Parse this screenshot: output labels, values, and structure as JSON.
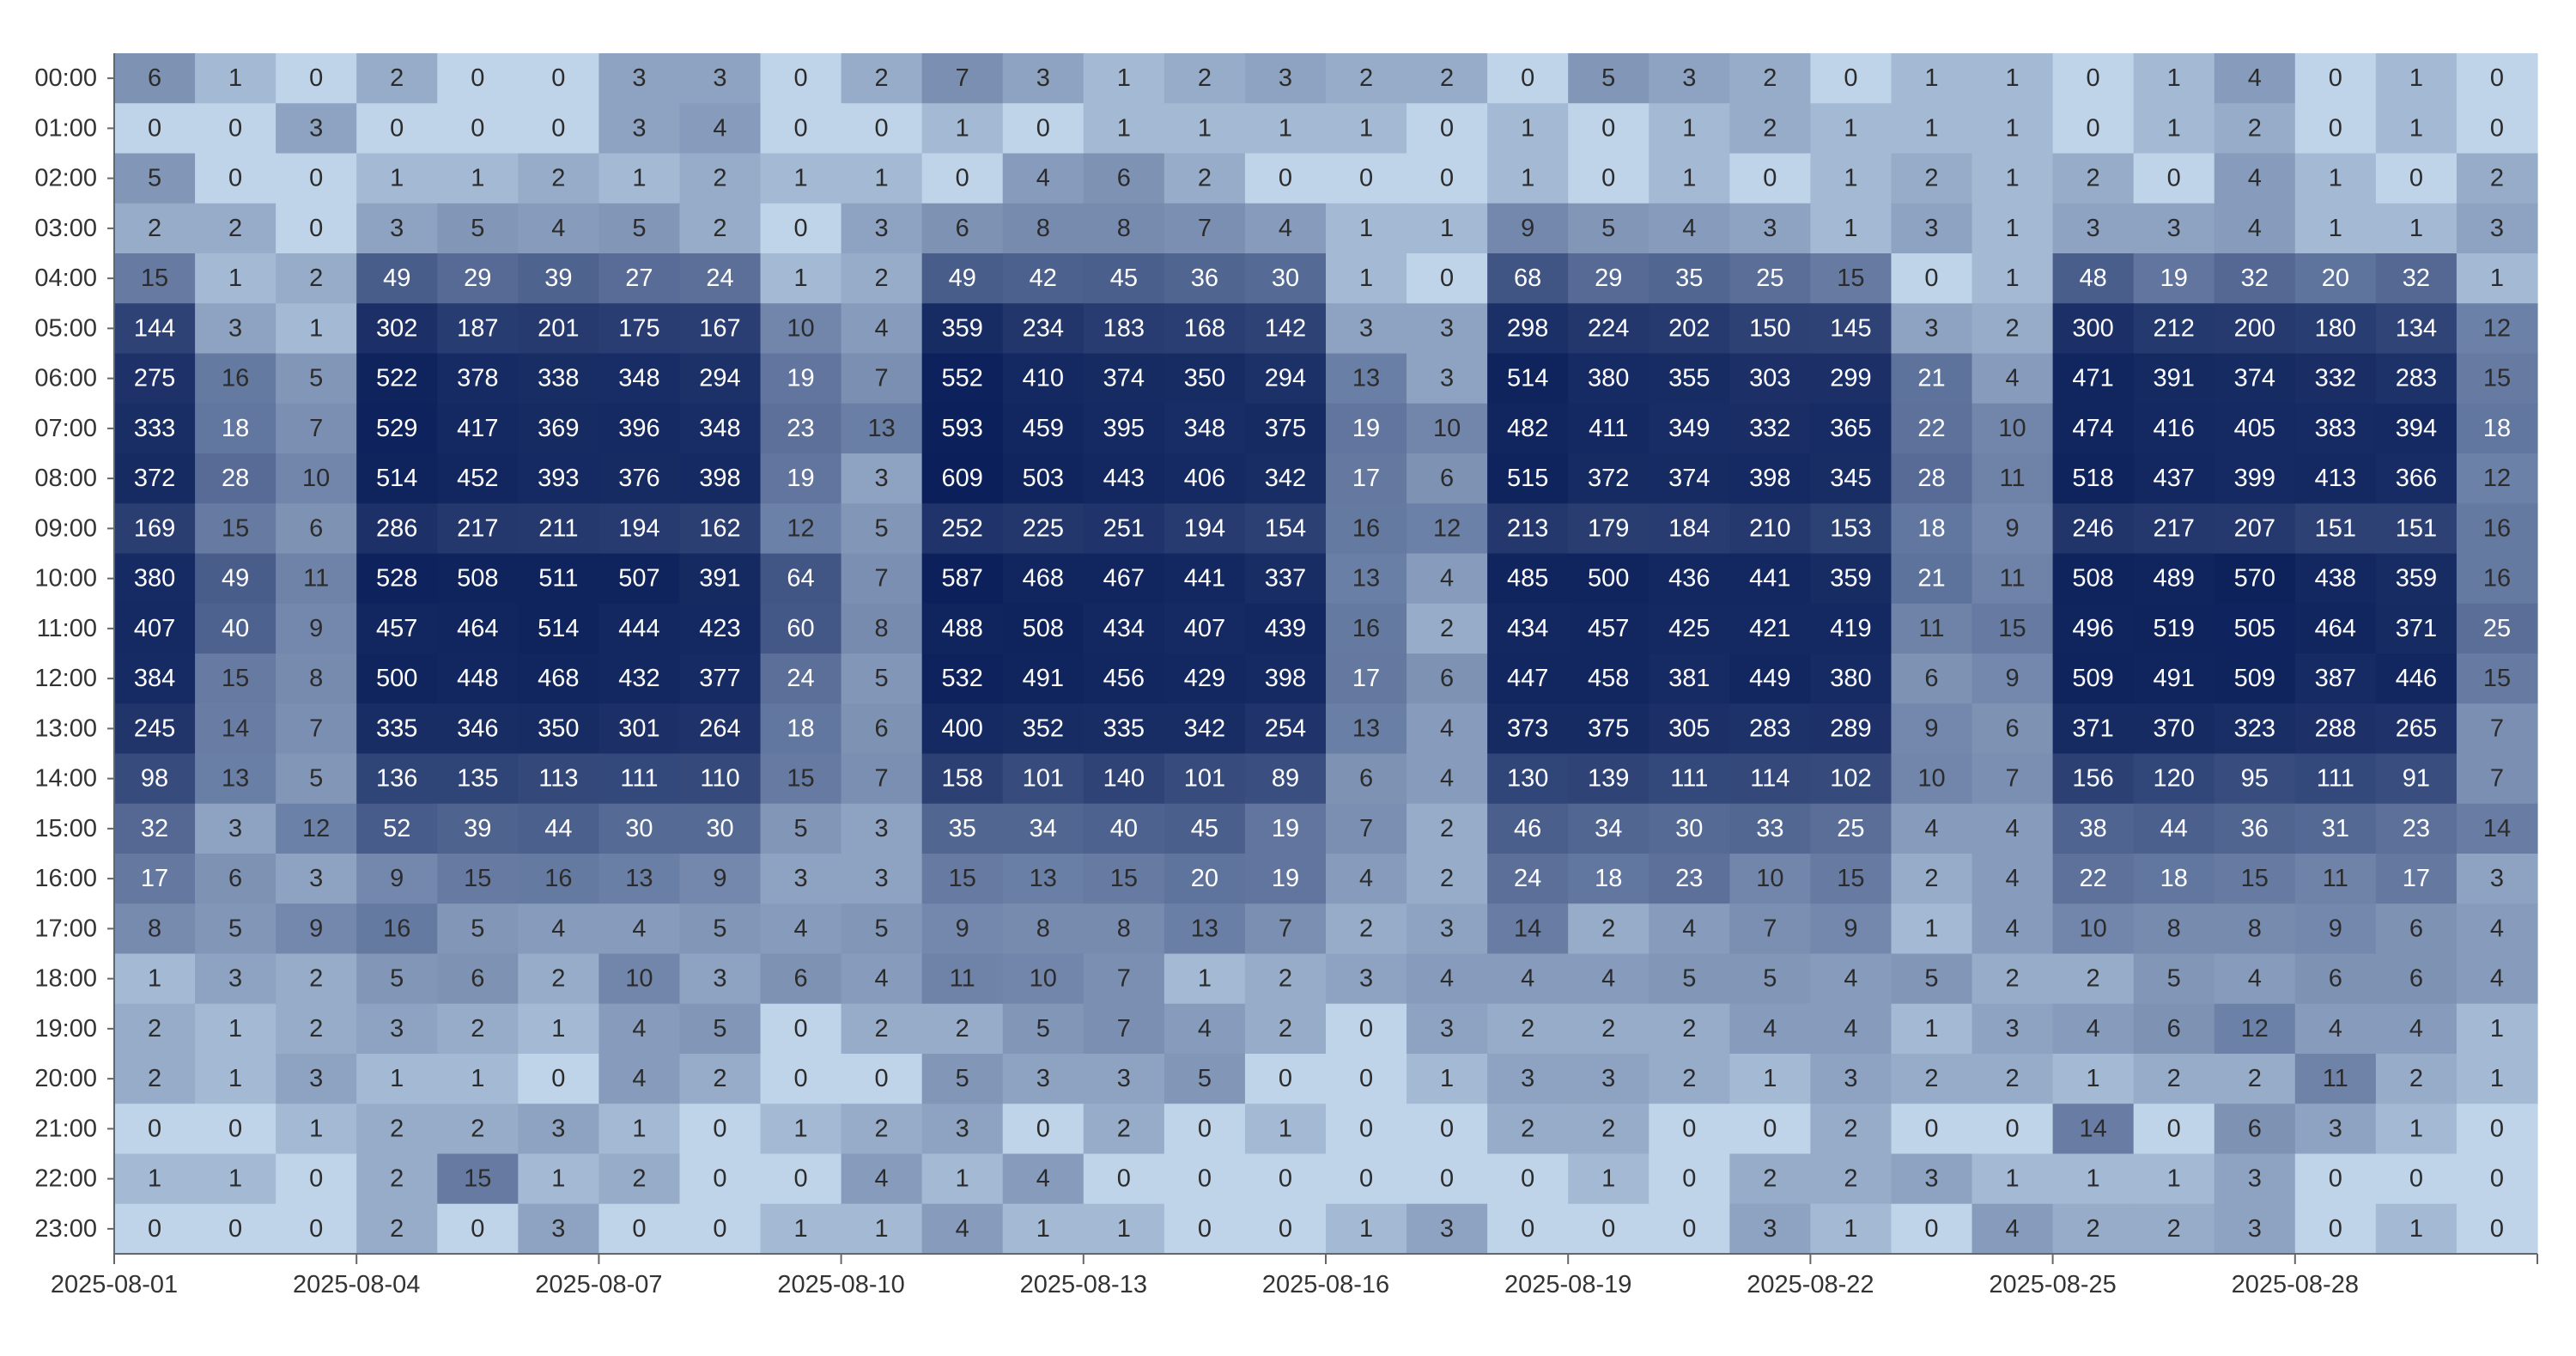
{
  "chart_data": {
    "type": "heatmap",
    "title": "",
    "xlabel": "",
    "ylabel": "",
    "x_tick_labels": [
      "2025-08-01",
      "2025-08-04",
      "2025-08-07",
      "2025-08-10",
      "2025-08-13",
      "2025-08-16",
      "2025-08-19",
      "2025-08-22",
      "2025-08-25",
      "2025-08-28"
    ],
    "x": [
      "2025-08-01",
      "2025-08-02",
      "2025-08-03",
      "2025-08-04",
      "2025-08-05",
      "2025-08-06",
      "2025-08-07",
      "2025-08-08",
      "2025-08-09",
      "2025-08-10",
      "2025-08-11",
      "2025-08-12",
      "2025-08-13",
      "2025-08-14",
      "2025-08-15",
      "2025-08-16",
      "2025-08-17",
      "2025-08-18",
      "2025-08-19",
      "2025-08-20",
      "2025-08-21",
      "2025-08-22",
      "2025-08-23",
      "2025-08-24",
      "2025-08-25",
      "2025-08-26",
      "2025-08-27",
      "2025-08-28",
      "2025-08-29",
      "2025-08-30"
    ],
    "y": [
      "00:00",
      "01:00",
      "02:00",
      "03:00",
      "04:00",
      "05:00",
      "06:00",
      "07:00",
      "08:00",
      "09:00",
      "10:00",
      "11:00",
      "12:00",
      "13:00",
      "14:00",
      "15:00",
      "16:00",
      "17:00",
      "18:00",
      "19:00",
      "20:00",
      "21:00",
      "22:00",
      "23:00"
    ],
    "values": [
      [
        6,
        1,
        0,
        2,
        0,
        0,
        3,
        3,
        0,
        2,
        7,
        3,
        1,
        2,
        3,
        2,
        2,
        0,
        5,
        3,
        2,
        0,
        1,
        1,
        0,
        1,
        4,
        0,
        1,
        0
      ],
      [
        0,
        0,
        3,
        0,
        0,
        0,
        3,
        4,
        0,
        0,
        1,
        0,
        1,
        1,
        1,
        1,
        0,
        1,
        0,
        1,
        2,
        1,
        1,
        1,
        0,
        1,
        2,
        0,
        1,
        0
      ],
      [
        5,
        0,
        0,
        1,
        1,
        2,
        1,
        2,
        1,
        1,
        0,
        4,
        6,
        2,
        0,
        0,
        0,
        1,
        0,
        1,
        0,
        1,
        2,
        1,
        2,
        0,
        4,
        1,
        0,
        2
      ],
      [
        2,
        2,
        0,
        3,
        5,
        4,
        5,
        2,
        0,
        3,
        6,
        8,
        8,
        7,
        4,
        1,
        1,
        9,
        5,
        4,
        3,
        1,
        3,
        1,
        3,
        3,
        4,
        1,
        1,
        3
      ],
      [
        15,
        1,
        2,
        49,
        29,
        39,
        27,
        24,
        1,
        2,
        49,
        42,
        45,
        36,
        30,
        1,
        0,
        68,
        29,
        35,
        25,
        15,
        0,
        1,
        48,
        19,
        32,
        20,
        32,
        1
      ],
      [
        144,
        3,
        1,
        302,
        187,
        201,
        175,
        167,
        10,
        4,
        359,
        234,
        183,
        168,
        142,
        3,
        3,
        298,
        224,
        202,
        150,
        145,
        3,
        2,
        300,
        212,
        200,
        180,
        134,
        12
      ],
      [
        275,
        16,
        5,
        522,
        378,
        338,
        348,
        294,
        19,
        7,
        552,
        410,
        374,
        350,
        294,
        13,
        3,
        514,
        380,
        355,
        303,
        299,
        21,
        4,
        471,
        391,
        374,
        332,
        283,
        15
      ],
      [
        333,
        18,
        7,
        529,
        417,
        369,
        396,
        348,
        23,
        13,
        593,
        459,
        395,
        348,
        375,
        19,
        10,
        482,
        411,
        349,
        332,
        365,
        22,
        10,
        474,
        416,
        405,
        383,
        394,
        18
      ],
      [
        372,
        28,
        10,
        514,
        452,
        393,
        376,
        398,
        19,
        3,
        609,
        503,
        443,
        406,
        342,
        17,
        6,
        515,
        372,
        374,
        398,
        345,
        28,
        11,
        518,
        437,
        399,
        413,
        366,
        12
      ],
      [
        169,
        15,
        6,
        286,
        217,
        211,
        194,
        162,
        12,
        5,
        252,
        225,
        251,
        194,
        154,
        16,
        12,
        213,
        179,
        184,
        210,
        153,
        18,
        9,
        246,
        217,
        207,
        151,
        151,
        16
      ],
      [
        380,
        49,
        11,
        528,
        508,
        511,
        507,
        391,
        64,
        7,
        587,
        468,
        467,
        441,
        337,
        13,
        4,
        485,
        500,
        436,
        441,
        359,
        21,
        11,
        508,
        489,
        570,
        438,
        359,
        16
      ],
      [
        407,
        40,
        9,
        457,
        464,
        514,
        444,
        423,
        60,
        8,
        488,
        508,
        434,
        407,
        439,
        16,
        2,
        434,
        457,
        425,
        421,
        419,
        11,
        15,
        496,
        519,
        505,
        464,
        371,
        25
      ],
      [
        384,
        15,
        8,
        500,
        448,
        468,
        432,
        377,
        24,
        5,
        532,
        491,
        456,
        429,
        398,
        17,
        6,
        447,
        458,
        381,
        449,
        380,
        6,
        9,
        509,
        491,
        509,
        387,
        446,
        15
      ],
      [
        245,
        14,
        7,
        335,
        346,
        350,
        301,
        264,
        18,
        6,
        400,
        352,
        335,
        342,
        254,
        13,
        4,
        373,
        375,
        305,
        283,
        289,
        9,
        6,
        371,
        370,
        323,
        288,
        265,
        7
      ],
      [
        98,
        13,
        5,
        136,
        135,
        113,
        111,
        110,
        15,
        7,
        158,
        101,
        140,
        101,
        89,
        6,
        4,
        130,
        139,
        111,
        114,
        102,
        10,
        7,
        156,
        120,
        95,
        111,
        91,
        7
      ],
      [
        32,
        3,
        12,
        52,
        39,
        44,
        30,
        30,
        5,
        3,
        35,
        34,
        40,
        45,
        19,
        7,
        2,
        46,
        34,
        30,
        33,
        25,
        4,
        4,
        38,
        44,
        36,
        31,
        23,
        14
      ],
      [
        17,
        6,
        3,
        9,
        15,
        16,
        13,
        9,
        3,
        3,
        15,
        13,
        15,
        20,
        19,
        4,
        2,
        24,
        18,
        23,
        10,
        15,
        2,
        4,
        22,
        18,
        15,
        11,
        17,
        3
      ],
      [
        8,
        5,
        9,
        16,
        5,
        4,
        4,
        5,
        4,
        5,
        9,
        8,
        8,
        13,
        7,
        2,
        3,
        14,
        2,
        4,
        7,
        9,
        1,
        4,
        10,
        8,
        8,
        9,
        6,
        4
      ],
      [
        1,
        3,
        2,
        5,
        6,
        2,
        10,
        3,
        6,
        4,
        11,
        10,
        7,
        1,
        2,
        3,
        4,
        4,
        4,
        5,
        5,
        4,
        5,
        2,
        2,
        5,
        4,
        6,
        6,
        4
      ],
      [
        2,
        1,
        2,
        3,
        2,
        1,
        4,
        5,
        0,
        2,
        2,
        5,
        7,
        4,
        2,
        0,
        3,
        2,
        2,
        2,
        4,
        4,
        1,
        3,
        4,
        6,
        12,
        4,
        4,
        1
      ],
      [
        2,
        1,
        3,
        1,
        1,
        0,
        4,
        2,
        0,
        0,
        5,
        3,
        3,
        5,
        0,
        0,
        1,
        3,
        3,
        2,
        1,
        3,
        2,
        2,
        1,
        2,
        2,
        11,
        2,
        1
      ],
      [
        0,
        0,
        1,
        2,
        2,
        3,
        1,
        0,
        1,
        2,
        3,
        0,
        2,
        0,
        1,
        0,
        0,
        2,
        2,
        0,
        0,
        2,
        0,
        0,
        14,
        0,
        6,
        3,
        1,
        0
      ],
      [
        1,
        1,
        0,
        2,
        15,
        1,
        2,
        0,
        0,
        4,
        1,
        4,
        0,
        0,
        0,
        0,
        0,
        0,
        1,
        0,
        2,
        2,
        3,
        1,
        1,
        1,
        3,
        0,
        0,
        0
      ],
      [
        0,
        0,
        0,
        2,
        0,
        3,
        0,
        0,
        1,
        1,
        4,
        1,
        1,
        0,
        0,
        1,
        3,
        0,
        0,
        0,
        3,
        1,
        0,
        4,
        2,
        2,
        3,
        0,
        1,
        0
      ]
    ],
    "colorscale": [
      "#bfd4e8",
      "#0b1f5a"
    ],
    "cell_labels": true,
    "grid": false,
    "legend": "none"
  }
}
